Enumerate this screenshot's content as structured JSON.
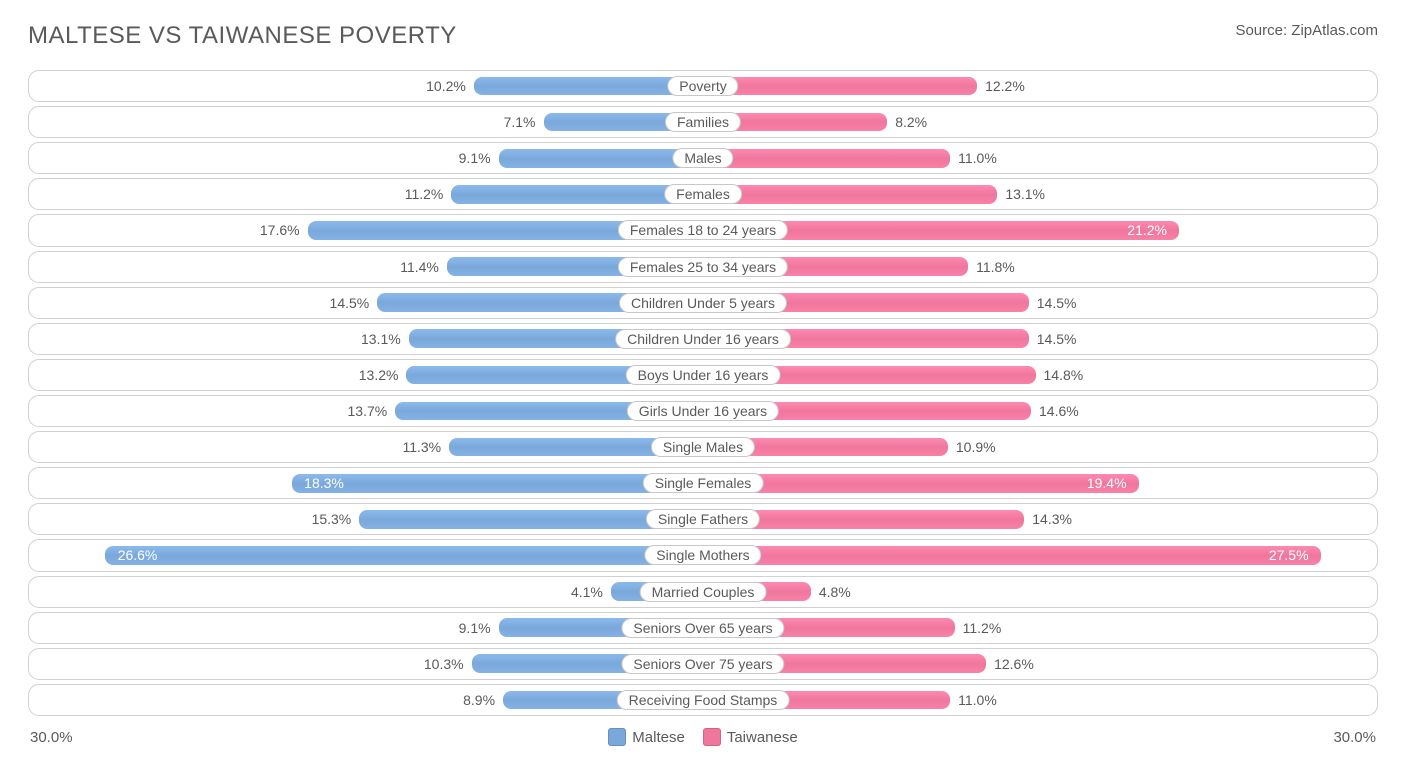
{
  "title": "MALTESE VS TAIWANESE POVERTY",
  "source": "Source: ZipAtlas.com",
  "axis_max": 30.0,
  "axis_label": "30.0%",
  "left_series": "Maltese",
  "right_series": "Taiwanese",
  "left_color": "#7aa8db",
  "right_color": "#ef779e",
  "border_color": "#d0d0d0",
  "label_border": "#c8c8c8",
  "bg": "#ffffff",
  "text_color": "#5a5a5a",
  "font_size_title": 24,
  "font_size_label": 14,
  "bar_radius": 8,
  "row_radius": 11,
  "swatch_size": 18,
  "rows": [
    {
      "label": "Poverty",
      "l": 10.2,
      "r": 12.2
    },
    {
      "label": "Families",
      "l": 7.1,
      "r": 8.2
    },
    {
      "label": "Males",
      "l": 9.1,
      "r": 11.0
    },
    {
      "label": "Females",
      "l": 11.2,
      "r": 13.1
    },
    {
      "label": "Females 18 to 24 years",
      "l": 17.6,
      "r": 21.2
    },
    {
      "label": "Females 25 to 34 years",
      "l": 11.4,
      "r": 11.8
    },
    {
      "label": "Children Under 5 years",
      "l": 14.5,
      "r": 14.5
    },
    {
      "label": "Children Under 16 years",
      "l": 13.1,
      "r": 14.5
    },
    {
      "label": "Boys Under 16 years",
      "l": 13.2,
      "r": 14.8
    },
    {
      "label": "Girls Under 16 years",
      "l": 13.7,
      "r": 14.6
    },
    {
      "label": "Single Males",
      "l": 11.3,
      "r": 10.9
    },
    {
      "label": "Single Females",
      "l": 18.3,
      "r": 19.4
    },
    {
      "label": "Single Fathers",
      "l": 15.3,
      "r": 14.3
    },
    {
      "label": "Single Mothers",
      "l": 26.6,
      "r": 27.5
    },
    {
      "label": "Married Couples",
      "l": 4.1,
      "r": 4.8
    },
    {
      "label": "Seniors Over 65 years",
      "l": 9.1,
      "r": 11.2
    },
    {
      "label": "Seniors Over 75 years",
      "l": 10.3,
      "r": 12.6
    },
    {
      "label": "Receiving Food Stamps",
      "l": 8.9,
      "r": 11.0
    }
  ],
  "inside_threshold": 18.0
}
